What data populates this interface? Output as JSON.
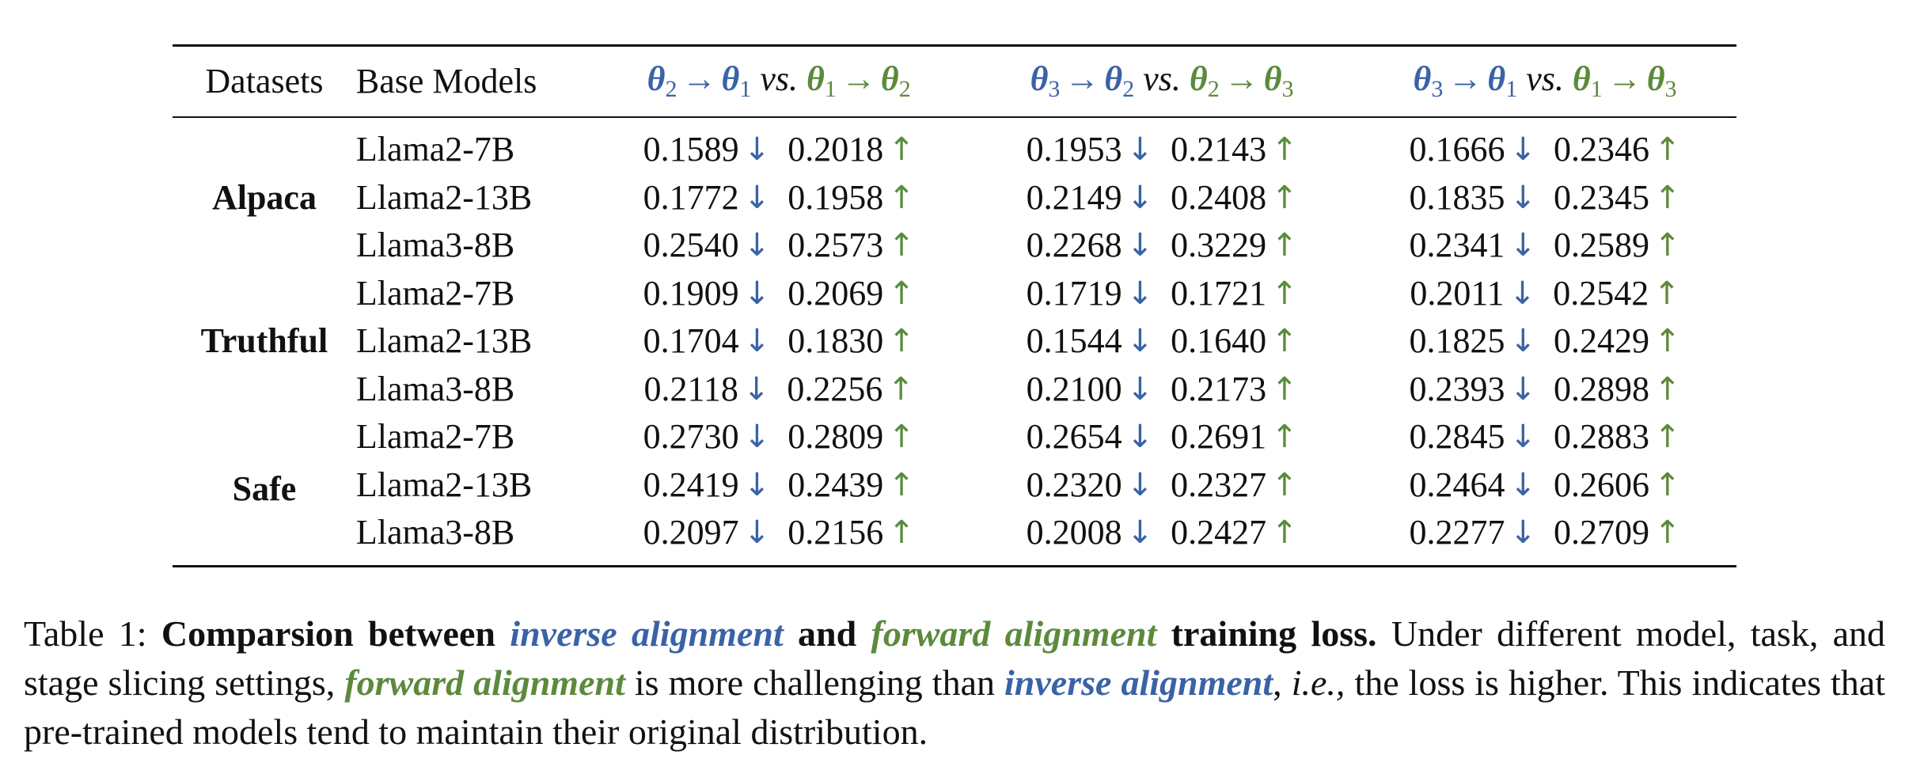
{
  "table": {
    "headers": {
      "datasets": "Datasets",
      "base_models": "Base Models",
      "pairs": [
        {
          "a": "θ",
          "a_sub": "2",
          "b": "θ",
          "b_sub": "1",
          "vs": "vs.",
          "c": "θ",
          "c_sub": "1",
          "d": "θ",
          "d_sub": "2"
        },
        {
          "a": "θ",
          "a_sub": "3",
          "b": "θ",
          "b_sub": "2",
          "vs": "vs.",
          "c": "θ",
          "c_sub": "2",
          "d": "θ",
          "d_sub": "3"
        },
        {
          "a": "θ",
          "a_sub": "3",
          "b": "θ",
          "b_sub": "1",
          "vs": "vs.",
          "c": "θ",
          "c_sub": "1",
          "d": "θ",
          "d_sub": "3"
        }
      ],
      "arrow": "→"
    },
    "down_arrow": "↓",
    "up_arrow": "↑",
    "groups": [
      {
        "dataset": "Alpaca",
        "rows": [
          {
            "model": "Llama2-7B",
            "vals": [
              "0.1589",
              "0.2018",
              "0.1953",
              "0.2143",
              "0.1666",
              "0.2346"
            ]
          },
          {
            "model": "Llama2-13B",
            "vals": [
              "0.1772",
              "0.1958",
              "0.2149",
              "0.2408",
              "0.1835",
              "0.2345"
            ]
          },
          {
            "model": "Llama3-8B",
            "vals": [
              "0.2540",
              "0.2573",
              "0.2268",
              "0.3229",
              "0.2341",
              "0.2589"
            ]
          }
        ]
      },
      {
        "dataset": "Truthful",
        "rows": [
          {
            "model": "Llama2-7B",
            "vals": [
              "0.1909",
              "0.2069",
              "0.1719",
              "0.1721",
              "0.2011",
              "0.2542"
            ]
          },
          {
            "model": "Llama2-13B",
            "vals": [
              "0.1704",
              "0.1830",
              "0.1544",
              "0.1640",
              "0.1825",
              "0.2429"
            ]
          },
          {
            "model": "Llama3-8B",
            "vals": [
              "0.2118",
              "0.2256",
              "0.2100",
              "0.2173",
              "0.2393",
              "0.2898"
            ]
          }
        ]
      },
      {
        "dataset": "Safe",
        "rows": [
          {
            "model": "Llama2-7B",
            "vals": [
              "0.2730",
              "0.2809",
              "0.2654",
              "0.2691",
              "0.2845",
              "0.2883"
            ]
          },
          {
            "model": "Llama2-13B",
            "vals": [
              "0.2419",
              "0.2439",
              "0.2320",
              "0.2327",
              "0.2464",
              "0.2606"
            ]
          },
          {
            "model": "Llama3-8B",
            "vals": [
              "0.2097",
              "0.2156",
              "0.2008",
              "0.2427",
              "0.2277",
              "0.2709"
            ]
          }
        ]
      }
    ]
  },
  "caption": {
    "label": "Table 1:",
    "bold1": "Comparsion between",
    "inverse": "inverse alignment",
    "and": "and",
    "forward": "forward alignment",
    "bold2": "training loss.",
    "text1": "Under different model, task, and stage slicing settings,",
    "forward2": "forward alignment",
    "text2": "is more challenging than",
    "inverse2": "inverse alignment",
    "comma": ",",
    "ie": "i.e.,",
    "text3": "the loss is higher. This indicates that pre-trained models tend to maintain their original distribution."
  },
  "colors": {
    "inverse": "#3a63a6",
    "forward": "#5c8a3c"
  }
}
